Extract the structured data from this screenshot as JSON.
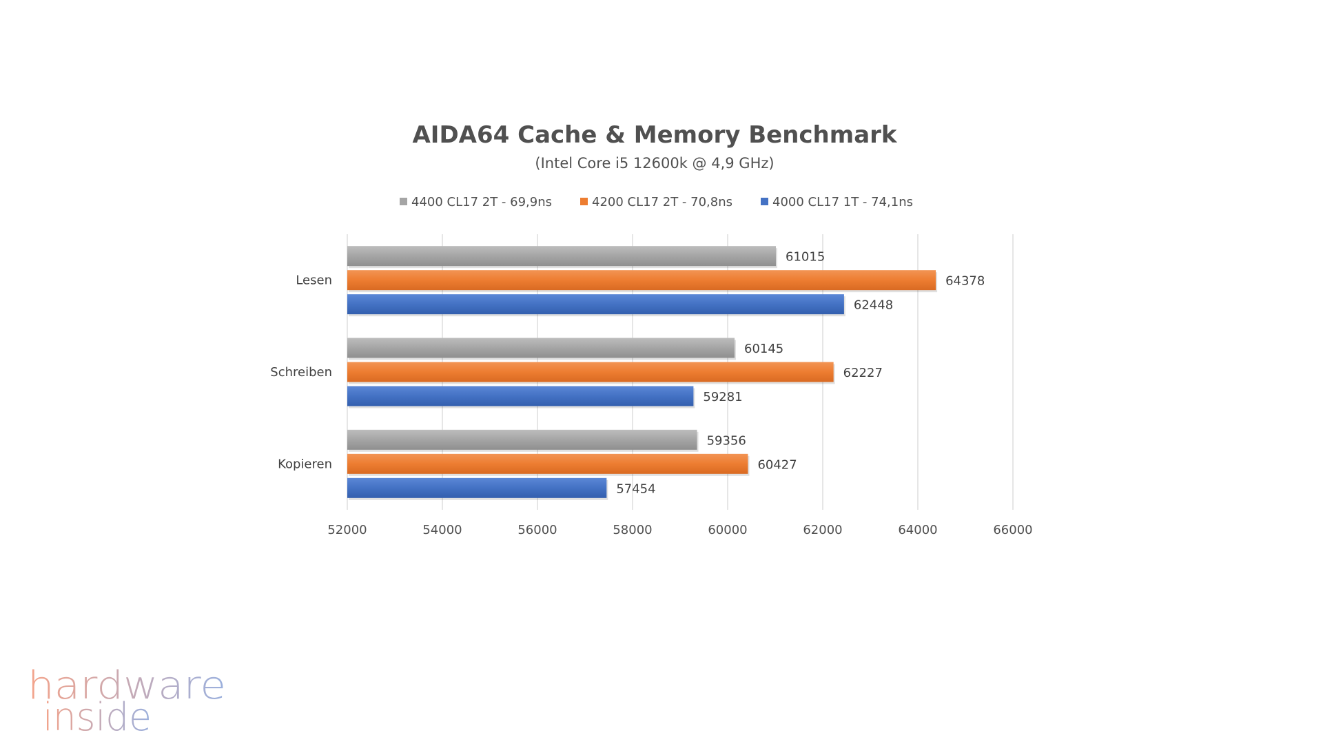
{
  "chart_data": {
    "type": "bar",
    "orientation": "horizontal",
    "title": "AIDA64 Cache & Memory Benchmark",
    "subtitle": "(Intel Core i5 12600k @ 4,9 GHz)",
    "categories": [
      "Lesen",
      "Schreiben",
      "Kopieren"
    ],
    "series": [
      {
        "name": "4400 CL17 2T - 69,9ns",
        "color": "#a5a5a5",
        "values": [
          61015,
          60145,
          59356
        ]
      },
      {
        "name": "4200 CL17 2T - 70,8ns",
        "color": "#ed7d31",
        "values": [
          64378,
          62227,
          60427
        ]
      },
      {
        "name": "4000 CL17 1T - 74,1ns",
        "color": "#4472c4",
        "values": [
          62448,
          59281,
          57454
        ]
      }
    ],
    "xlim": [
      52000,
      66000
    ],
    "xticks": [
      "52000",
      "54000",
      "56000",
      "58000",
      "60000",
      "62000",
      "64000",
      "66000"
    ],
    "grid": true,
    "legend_position": "top"
  },
  "watermark": {
    "line1": "hardware",
    "line2": "inside",
    "color_left": "#f4a38a",
    "color_right": "#9ab0de"
  }
}
